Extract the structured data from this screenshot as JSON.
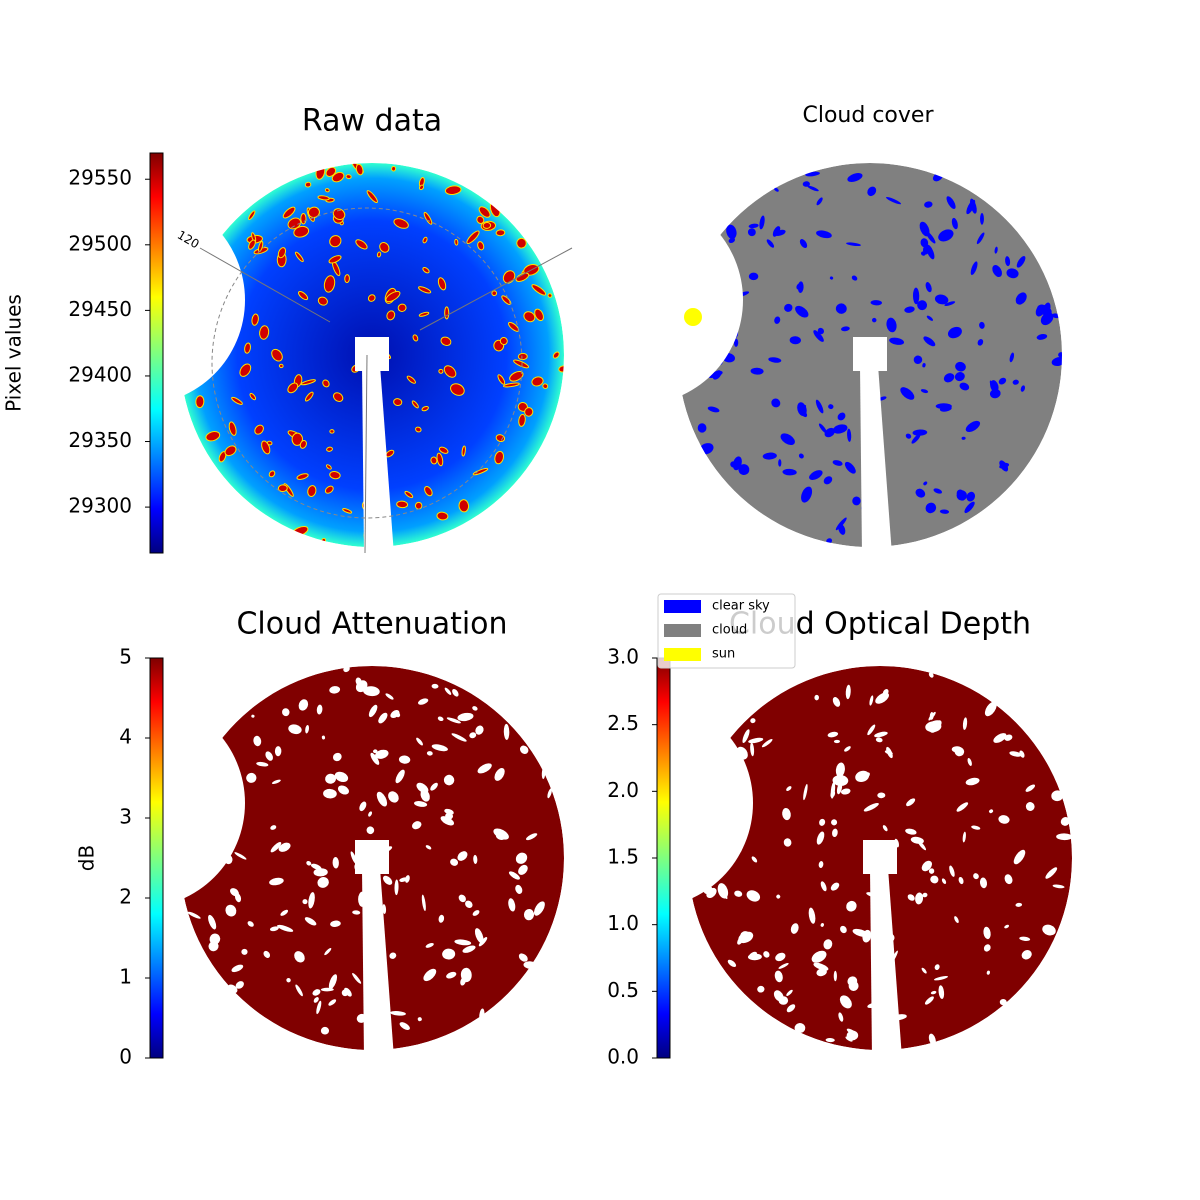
{
  "chart_data": [
    {
      "type": "image",
      "title": "Raw data",
      "colorbar_label": "Pixel values",
      "annotations": [
        "120"
      ],
      "colormap": "jet",
      "ylim": [
        29265,
        29570
      ],
      "yticks": [
        29300,
        29350,
        29400,
        29450,
        29500,
        29550
      ]
    },
    {
      "type": "image",
      "title": "Cloud cover",
      "series": [
        {
          "name": "clear sky",
          "color": "#0000ff"
        },
        {
          "name": "cloud",
          "color": "#808080"
        },
        {
          "name": "sun",
          "color": "#ffff00"
        }
      ]
    },
    {
      "type": "image",
      "title": "Cloud Attenuation",
      "colorbar_label": "dB",
      "colormap": "jet",
      "color": "#800000",
      "ylim": [
        0,
        5
      ],
      "yticks": [
        0,
        1,
        2,
        3,
        4,
        5
      ]
    },
    {
      "type": "image",
      "title": "Cloud Optical Depth",
      "colormap": "jet",
      "color": "#800000",
      "ylim": [
        0,
        3
      ],
      "yticks": [
        {
          "value": 0,
          "label": "0.0"
        },
        {
          "value": 0.5,
          "label": "0.5"
        },
        {
          "value": 1,
          "label": "1.0"
        },
        {
          "value": 1.5,
          "label": "1.5"
        },
        {
          "value": 2,
          "label": "2.0"
        },
        {
          "value": 2.5,
          "label": "2.5"
        },
        {
          "value": 3,
          "label": "3.0"
        }
      ]
    }
  ]
}
